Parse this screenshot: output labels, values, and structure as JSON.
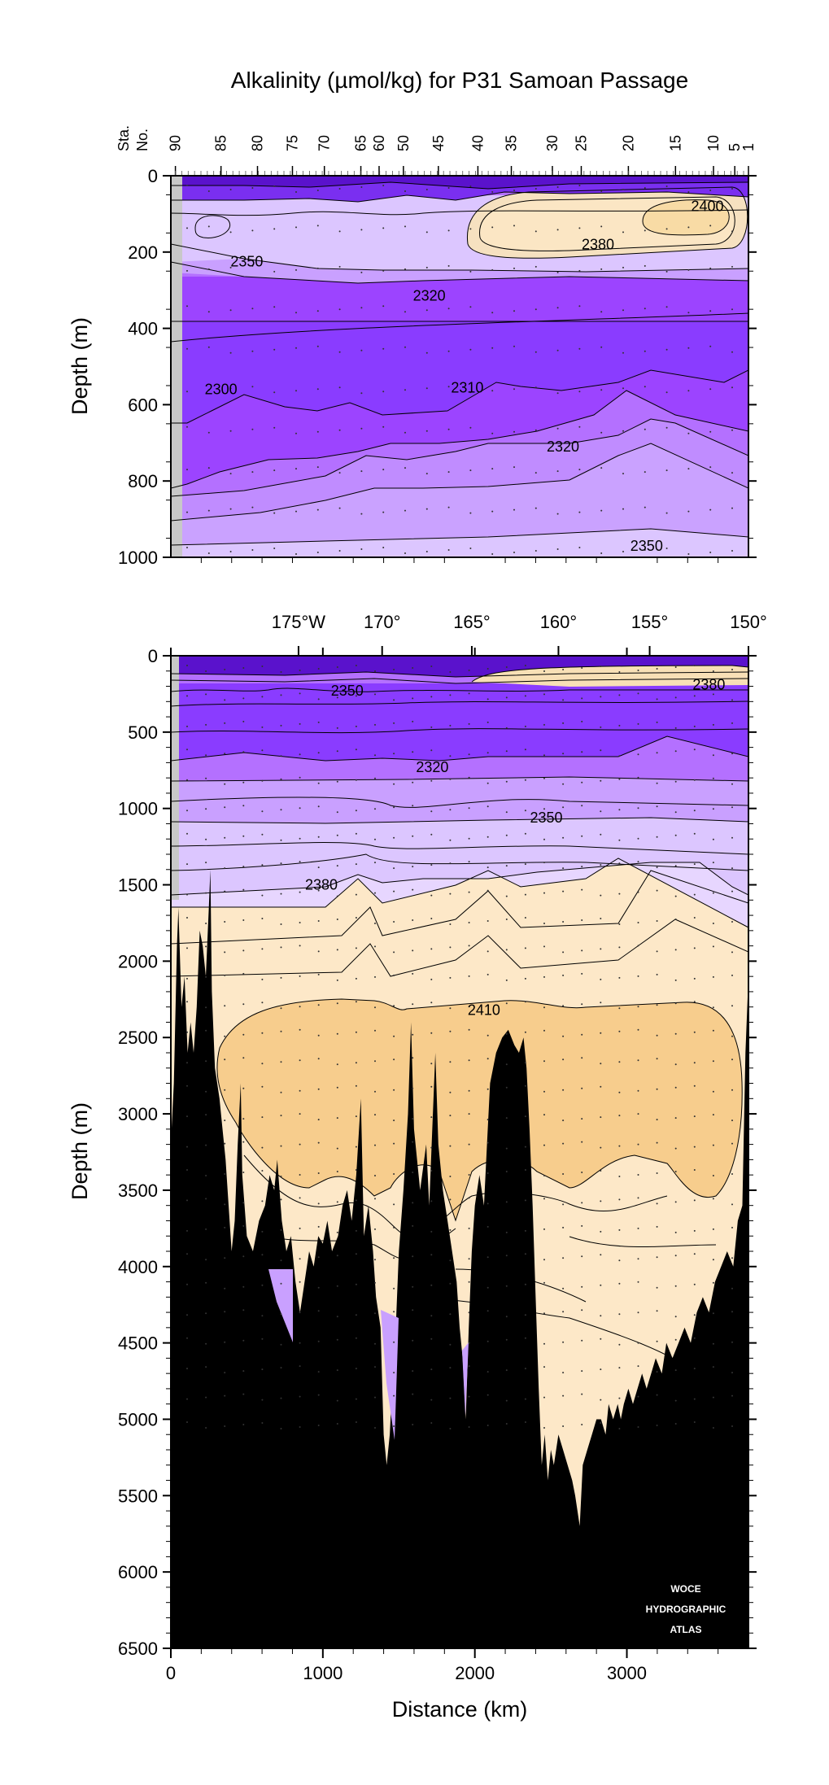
{
  "chart_data": {
    "type": "contour-section",
    "title": "Alkalinity (µmol/kg) for P31 Samoan Passage",
    "colors": {
      "c2250": "#5a12cc",
      "c2280": "#6f22ea",
      "c2300": "#8a3cff",
      "c2310": "#9c44ff",
      "c2320": "#b470ff",
      "c2340": "#c9a0ff",
      "c2350": "#dcc6ff",
      "c2370": "#ffeccc",
      "c2380": "#fde6c2",
      "c2400": "#f9cf8e",
      "bottom": "#000000"
    },
    "stations": {
      "label_top": "Sta.",
      "label_bottom": "No.",
      "labels": [
        {
          "text": "90",
          "x": 30
        },
        {
          "text": "85",
          "x": 330
        },
        {
          "text": "80",
          "x": 570
        },
        {
          "text": "75",
          "x": 800
        },
        {
          "text": "70",
          "x": 1010
        },
        {
          "text": "65",
          "x": 1250
        },
        {
          "text": "60",
          "x": 1370
        },
        {
          "text": "50",
          "x": 1530
        },
        {
          "text": "45",
          "x": 1760
        },
        {
          "text": "40",
          "x": 2020
        },
        {
          "text": "35",
          "x": 2240
        },
        {
          "text": "30",
          "x": 2510
        },
        {
          "text": "25",
          "x": 2700
        },
        {
          "text": "20",
          "x": 3010
        },
        {
          "text": "15",
          "x": 3320
        },
        {
          "text": "10",
          "x": 3570
        },
        {
          "text": "5",
          "x": 3710
        },
        {
          "text": "1",
          "x": 3800
        }
      ]
    },
    "top_panel": {
      "ylabel": "Depth (m)",
      "ylim": [
        0,
        1000
      ],
      "yticks": [
        "0",
        "200",
        "400",
        "600",
        "800",
        "1000"
      ],
      "contour_labels": [
        {
          "text": "2400",
          "x": 3530,
          "y": 80
        },
        {
          "text": "2380",
          "x": 2810,
          "y": 180
        },
        {
          "text": "2350",
          "x": 500,
          "y": 225
        },
        {
          "text": "2320",
          "x": 1700,
          "y": 315
        },
        {
          "text": "2300",
          "x": 330,
          "y": 560
        },
        {
          "text": "2310",
          "x": 1950,
          "y": 555
        },
        {
          "text": "2320",
          "x": 2580,
          "y": 710
        },
        {
          "text": "2350",
          "x": 3130,
          "y": 970
        }
      ]
    },
    "bottom_panel": {
      "xlabel": "Distance (km)",
      "ylabel": "Depth (m)",
      "xlim": [
        0,
        3800
      ],
      "xticks": [
        "0",
        "1000",
        "2000",
        "3000"
      ],
      "ylim": [
        0,
        6500
      ],
      "yticks": [
        "0",
        "500",
        "1000",
        "1500",
        "2000",
        "2500",
        "3000",
        "3500",
        "4000",
        "4500",
        "5000",
        "5500",
        "6000",
        "6500"
      ],
      "longitudes": [
        {
          "text": "175°W",
          "x": 840
        },
        {
          "text": "170°",
          "x": 1390
        },
        {
          "text": "165°",
          "x": 1980
        },
        {
          "text": "160°",
          "x": 2550
        },
        {
          "text": "155°",
          "x": 3150
        },
        {
          "text": "150°",
          "x": 3800
        }
      ],
      "contour_labels": [
        {
          "text": "2350",
          "x": 1160,
          "y": 230
        },
        {
          "text": "2380",
          "x": 3540,
          "y": 190
        },
        {
          "text": "2320",
          "x": 1720,
          "y": 730
        },
        {
          "text": "2350",
          "x": 2470,
          "y": 1060
        },
        {
          "text": "2380",
          "x": 990,
          "y": 1500
        },
        {
          "text": "2410",
          "x": 2060,
          "y": 2320
        }
      ]
    },
    "watermark": [
      "WOCE",
      "HYDROGRAPHIC",
      "ATLAS"
    ]
  }
}
